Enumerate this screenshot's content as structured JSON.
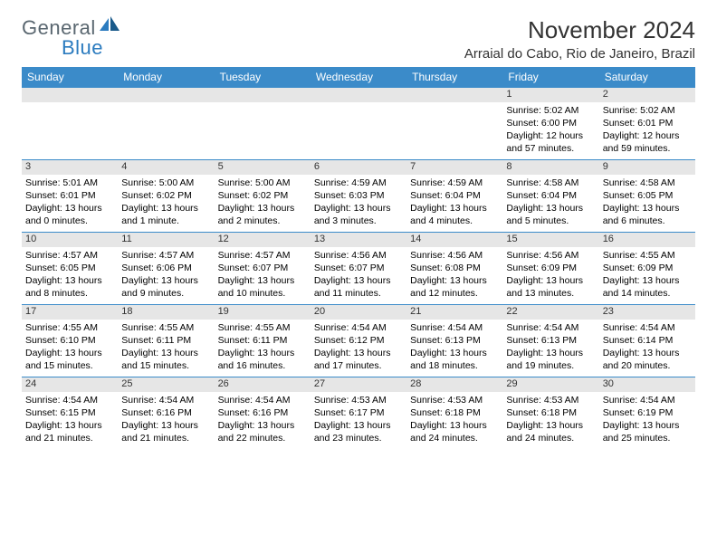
{
  "brand": {
    "text1": "General",
    "text2": "Blue"
  },
  "title": "November 2024",
  "location": "Arraial do Cabo, Rio de Janeiro, Brazil",
  "colors": {
    "header_bg": "#3b8bc9",
    "header_text": "#ffffff",
    "daynum_bg": "#e6e6e6",
    "border": "#3b8bc9",
    "body_text": "#000000",
    "title_text": "#333333",
    "logo_gray": "#5a6770",
    "logo_blue": "#2b7bbf"
  },
  "typography": {
    "title_fontsize": 26,
    "location_fontsize": 15,
    "header_fontsize": 12,
    "daynum_fontsize": 11,
    "cell_fontsize": 10.5
  },
  "daysOfWeek": [
    "Sunday",
    "Monday",
    "Tuesday",
    "Wednesday",
    "Thursday",
    "Friday",
    "Saturday"
  ],
  "weeks": [
    [
      {
        "n": "",
        "sr": "",
        "ss": "",
        "dl": ""
      },
      {
        "n": "",
        "sr": "",
        "ss": "",
        "dl": ""
      },
      {
        "n": "",
        "sr": "",
        "ss": "",
        "dl": ""
      },
      {
        "n": "",
        "sr": "",
        "ss": "",
        "dl": ""
      },
      {
        "n": "",
        "sr": "",
        "ss": "",
        "dl": ""
      },
      {
        "n": "1",
        "sr": "Sunrise: 5:02 AM",
        "ss": "Sunset: 6:00 PM",
        "dl": "Daylight: 12 hours and 57 minutes."
      },
      {
        "n": "2",
        "sr": "Sunrise: 5:02 AM",
        "ss": "Sunset: 6:01 PM",
        "dl": "Daylight: 12 hours and 59 minutes."
      }
    ],
    [
      {
        "n": "3",
        "sr": "Sunrise: 5:01 AM",
        "ss": "Sunset: 6:01 PM",
        "dl": "Daylight: 13 hours and 0 minutes."
      },
      {
        "n": "4",
        "sr": "Sunrise: 5:00 AM",
        "ss": "Sunset: 6:02 PM",
        "dl": "Daylight: 13 hours and 1 minute."
      },
      {
        "n": "5",
        "sr": "Sunrise: 5:00 AM",
        "ss": "Sunset: 6:02 PM",
        "dl": "Daylight: 13 hours and 2 minutes."
      },
      {
        "n": "6",
        "sr": "Sunrise: 4:59 AM",
        "ss": "Sunset: 6:03 PM",
        "dl": "Daylight: 13 hours and 3 minutes."
      },
      {
        "n": "7",
        "sr": "Sunrise: 4:59 AM",
        "ss": "Sunset: 6:04 PM",
        "dl": "Daylight: 13 hours and 4 minutes."
      },
      {
        "n": "8",
        "sr": "Sunrise: 4:58 AM",
        "ss": "Sunset: 6:04 PM",
        "dl": "Daylight: 13 hours and 5 minutes."
      },
      {
        "n": "9",
        "sr": "Sunrise: 4:58 AM",
        "ss": "Sunset: 6:05 PM",
        "dl": "Daylight: 13 hours and 6 minutes."
      }
    ],
    [
      {
        "n": "10",
        "sr": "Sunrise: 4:57 AM",
        "ss": "Sunset: 6:05 PM",
        "dl": "Daylight: 13 hours and 8 minutes."
      },
      {
        "n": "11",
        "sr": "Sunrise: 4:57 AM",
        "ss": "Sunset: 6:06 PM",
        "dl": "Daylight: 13 hours and 9 minutes."
      },
      {
        "n": "12",
        "sr": "Sunrise: 4:57 AM",
        "ss": "Sunset: 6:07 PM",
        "dl": "Daylight: 13 hours and 10 minutes."
      },
      {
        "n": "13",
        "sr": "Sunrise: 4:56 AM",
        "ss": "Sunset: 6:07 PM",
        "dl": "Daylight: 13 hours and 11 minutes."
      },
      {
        "n": "14",
        "sr": "Sunrise: 4:56 AM",
        "ss": "Sunset: 6:08 PM",
        "dl": "Daylight: 13 hours and 12 minutes."
      },
      {
        "n": "15",
        "sr": "Sunrise: 4:56 AM",
        "ss": "Sunset: 6:09 PM",
        "dl": "Daylight: 13 hours and 13 minutes."
      },
      {
        "n": "16",
        "sr": "Sunrise: 4:55 AM",
        "ss": "Sunset: 6:09 PM",
        "dl": "Daylight: 13 hours and 14 minutes."
      }
    ],
    [
      {
        "n": "17",
        "sr": "Sunrise: 4:55 AM",
        "ss": "Sunset: 6:10 PM",
        "dl": "Daylight: 13 hours and 15 minutes."
      },
      {
        "n": "18",
        "sr": "Sunrise: 4:55 AM",
        "ss": "Sunset: 6:11 PM",
        "dl": "Daylight: 13 hours and 15 minutes."
      },
      {
        "n": "19",
        "sr": "Sunrise: 4:55 AM",
        "ss": "Sunset: 6:11 PM",
        "dl": "Daylight: 13 hours and 16 minutes."
      },
      {
        "n": "20",
        "sr": "Sunrise: 4:54 AM",
        "ss": "Sunset: 6:12 PM",
        "dl": "Daylight: 13 hours and 17 minutes."
      },
      {
        "n": "21",
        "sr": "Sunrise: 4:54 AM",
        "ss": "Sunset: 6:13 PM",
        "dl": "Daylight: 13 hours and 18 minutes."
      },
      {
        "n": "22",
        "sr": "Sunrise: 4:54 AM",
        "ss": "Sunset: 6:13 PM",
        "dl": "Daylight: 13 hours and 19 minutes."
      },
      {
        "n": "23",
        "sr": "Sunrise: 4:54 AM",
        "ss": "Sunset: 6:14 PM",
        "dl": "Daylight: 13 hours and 20 minutes."
      }
    ],
    [
      {
        "n": "24",
        "sr": "Sunrise: 4:54 AM",
        "ss": "Sunset: 6:15 PM",
        "dl": "Daylight: 13 hours and 21 minutes."
      },
      {
        "n": "25",
        "sr": "Sunrise: 4:54 AM",
        "ss": "Sunset: 6:16 PM",
        "dl": "Daylight: 13 hours and 21 minutes."
      },
      {
        "n": "26",
        "sr": "Sunrise: 4:54 AM",
        "ss": "Sunset: 6:16 PM",
        "dl": "Daylight: 13 hours and 22 minutes."
      },
      {
        "n": "27",
        "sr": "Sunrise: 4:53 AM",
        "ss": "Sunset: 6:17 PM",
        "dl": "Daylight: 13 hours and 23 minutes."
      },
      {
        "n": "28",
        "sr": "Sunrise: 4:53 AM",
        "ss": "Sunset: 6:18 PM",
        "dl": "Daylight: 13 hours and 24 minutes."
      },
      {
        "n": "29",
        "sr": "Sunrise: 4:53 AM",
        "ss": "Sunset: 6:18 PM",
        "dl": "Daylight: 13 hours and 24 minutes."
      },
      {
        "n": "30",
        "sr": "Sunrise: 4:54 AM",
        "ss": "Sunset: 6:19 PM",
        "dl": "Daylight: 13 hours and 25 minutes."
      }
    ]
  ]
}
